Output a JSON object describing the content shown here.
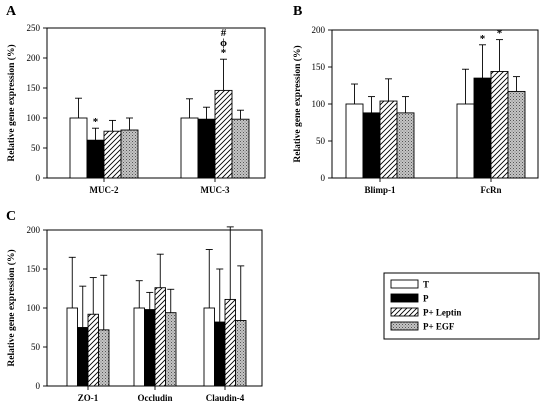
{
  "legend": [
    "T",
    "P",
    "P+ Leptin",
    "P+ EGF"
  ],
  "series_styles": [
    {
      "fill": "#ffffff",
      "pattern": "none"
    },
    {
      "fill": "#000000",
      "pattern": "none"
    },
    {
      "fill": "#ffffff",
      "pattern": "diagonal-hatch"
    },
    {
      "fill": "#bdbdbd",
      "pattern": "stipple"
    }
  ],
  "chart_data": [
    {
      "panel": "A",
      "type": "bar",
      "ylabel": "Relative gene expression (%)",
      "ylim": [
        0,
        250
      ],
      "yticks": [
        0,
        50,
        100,
        150,
        200,
        250
      ],
      "categories": [
        "MUC-2",
        "MUC-3"
      ],
      "series": [
        {
          "name": "T",
          "values": [
            100,
            100
          ],
          "errors": [
            33,
            32
          ]
        },
        {
          "name": "P",
          "values": [
            63,
            98
          ],
          "errors": [
            20,
            20
          ]
        },
        {
          "name": "P+ Leptin",
          "values": [
            78,
            146
          ],
          "errors": [
            18,
            52
          ]
        },
        {
          "name": "P+ EGF",
          "values": [
            80,
            98
          ],
          "errors": [
            20,
            15
          ]
        }
      ],
      "annotations": [
        {
          "category": "MUC-2",
          "series": "P",
          "text": "*"
        },
        {
          "category": "MUC-3",
          "series": "P+ Leptin",
          "text": "*"
        },
        {
          "category": "MUC-3",
          "series": "P+ Leptin",
          "text": "ϕ"
        },
        {
          "category": "MUC-3",
          "series": "P+ Leptin",
          "text": "#"
        }
      ]
    },
    {
      "panel": "B",
      "type": "bar",
      "ylabel": "Relative gene expression (%)",
      "ylim": [
        0,
        200
      ],
      "yticks": [
        0,
        50,
        100,
        150,
        200
      ],
      "categories": [
        "Blimp-1",
        "FcRn"
      ],
      "series": [
        {
          "name": "T",
          "values": [
            100,
            100
          ],
          "errors": [
            27,
            47
          ]
        },
        {
          "name": "P",
          "values": [
            88,
            135
          ],
          "errors": [
            22,
            45
          ]
        },
        {
          "name": "P+ Leptin",
          "values": [
            104,
            144
          ],
          "errors": [
            30,
            43
          ]
        },
        {
          "name": "P+ EGF",
          "values": [
            88,
            117
          ],
          "errors": [
            22,
            20
          ]
        }
      ],
      "annotations": [
        {
          "category": "FcRn",
          "series": "P",
          "text": "*"
        },
        {
          "category": "FcRn",
          "series": "P+ Leptin",
          "text": "*"
        }
      ]
    },
    {
      "panel": "C",
      "type": "bar",
      "ylabel": "Relative gene expression (%)",
      "ylim": [
        0,
        200
      ],
      "yticks": [
        0,
        50,
        100,
        150,
        200
      ],
      "categories": [
        "ZO-1",
        "Occludin",
        "Claudin-4"
      ],
      "series": [
        {
          "name": "T",
          "values": [
            100,
            100,
            100
          ],
          "errors": [
            65,
            35,
            75
          ]
        },
        {
          "name": "P",
          "values": [
            75,
            98,
            82
          ],
          "errors": [
            53,
            22,
            68
          ]
        },
        {
          "name": "P+ Leptin",
          "values": [
            92,
            126,
            111
          ],
          "errors": [
            47,
            43,
            93
          ]
        },
        {
          "name": "P+ EGF",
          "values": [
            72,
            94,
            84
          ],
          "errors": [
            70,
            30,
            70
          ]
        }
      ],
      "annotations": []
    }
  ]
}
